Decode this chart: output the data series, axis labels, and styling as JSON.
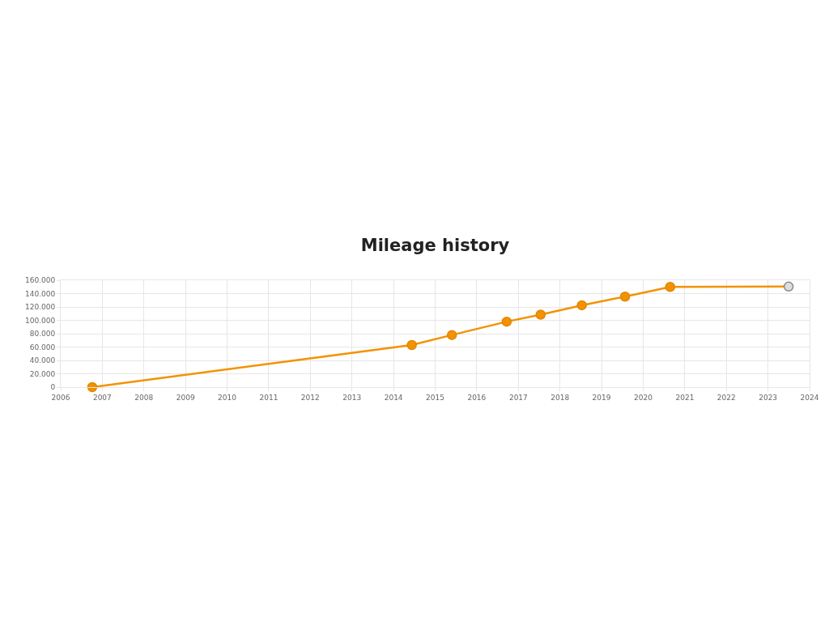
{
  "chart_data": {
    "type": "line",
    "title": "Mileage history",
    "x": [
      "2006-10-05",
      "2014-06-10",
      "2015-05-28",
      "2016-09-20",
      "2017-07-15",
      "2018-07-12",
      "2019-07-26",
      "2020-08-25",
      "2023-07-01"
    ],
    "series": [
      {
        "color": "#f39200",
        "colors": [
          "#f39200",
          "#f39200",
          "#f39200",
          "#f39200",
          "#f39200",
          "#f39200",
          "#f39200",
          "#f39200",
          "#dddddd"
        ],
        "values": [
          0,
          63000,
          78000,
          98000,
          108500,
          122500,
          135500,
          150000,
          150500
        ]
      }
    ],
    "xlim": [
      "2006",
      "2024"
    ],
    "xticks": [
      "2006",
      "2007",
      "2008",
      "2009",
      "2010",
      "2011",
      "2012",
      "2013",
      "2014",
      "2015",
      "2016",
      "2017",
      "2018",
      "2019",
      "2020",
      "2021",
      "2022",
      "2023",
      "2024"
    ],
    "ylim": [
      0,
      160000
    ],
    "yticks": [
      {
        "value": 0,
        "label": "0"
      },
      {
        "value": 20000,
        "label": "20.000"
      },
      {
        "value": 40000,
        "label": "40.000"
      },
      {
        "value": 60000,
        "label": "60.000"
      },
      {
        "value": 80000,
        "label": "80.000"
      },
      {
        "value": 100000,
        "label": "100.000"
      },
      {
        "value": 120000,
        "label": "120.000"
      },
      {
        "value": 140000,
        "label": "140.000"
      },
      {
        "value": 160000,
        "label": "160.000"
      }
    ],
    "grid": true,
    "marker": "circle",
    "line_style": "solid"
  }
}
